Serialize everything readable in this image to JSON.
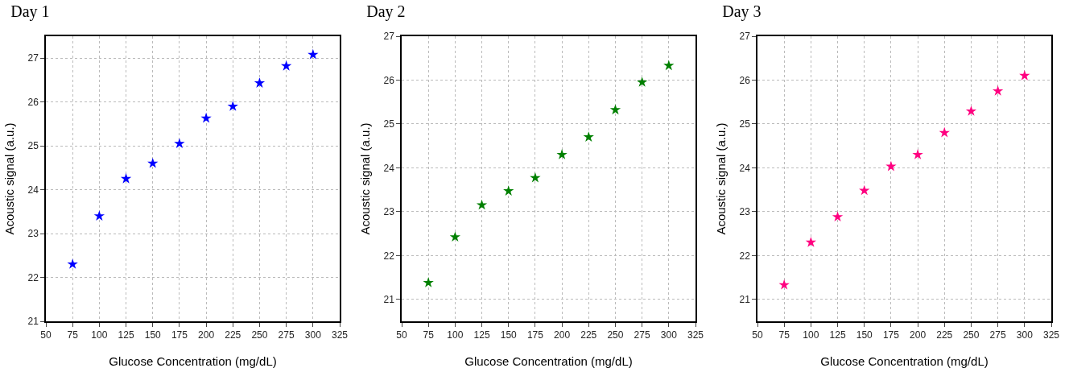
{
  "chart_data": [
    {
      "type": "scatter",
      "title": "Day 1",
      "xlabel": "Glucose Concentration (mg/dL)",
      "ylabel": "Acoustic signal (a.u.)",
      "x": [
        75,
        100,
        125,
        150,
        175,
        200,
        225,
        250,
        275,
        300
      ],
      "series": [
        {
          "color": "#0000ff",
          "values": [
            22.3,
            23.4,
            24.25,
            24.6,
            25.05,
            25.63,
            25.9,
            26.43,
            26.82,
            27.08
          ]
        }
      ],
      "xlim": [
        50,
        325
      ],
      "xticks": [
        50,
        75,
        100,
        125,
        150,
        175,
        200,
        225,
        250,
        275,
        300,
        325
      ],
      "ylim": [
        21,
        27.5
      ],
      "yticks": [
        21,
        22,
        23,
        24,
        25,
        26,
        27
      ],
      "grid": true,
      "marker": "star"
    },
    {
      "type": "scatter",
      "title": "Day 2",
      "xlabel": "Glucose Concentration (mg/dL)",
      "ylabel": "Acoustic signal (a.u.)",
      "x": [
        75,
        100,
        125,
        150,
        175,
        200,
        225,
        250,
        275,
        300
      ],
      "series": [
        {
          "color": "#008000",
          "values": [
            21.38,
            22.42,
            23.15,
            23.47,
            23.77,
            24.3,
            24.7,
            25.32,
            25.95,
            26.33
          ]
        }
      ],
      "xlim": [
        50,
        325
      ],
      "xticks": [
        50,
        75,
        100,
        125,
        150,
        175,
        200,
        225,
        250,
        275,
        300,
        325
      ],
      "ylim": [
        20.5,
        27
      ],
      "yticks": [
        21,
        22,
        23,
        24,
        25,
        26,
        27
      ],
      "grid": true,
      "marker": "star"
    },
    {
      "type": "scatter",
      "title": "Day 3",
      "xlabel": "Glucose Concentration (mg/dL)",
      "ylabel": "Acoustic signal (a.u.)",
      "x": [
        75,
        100,
        125,
        150,
        175,
        200,
        225,
        250,
        275,
        300
      ],
      "series": [
        {
          "color": "#ff0080",
          "values": [
            21.33,
            22.3,
            22.88,
            23.48,
            24.03,
            24.3,
            24.8,
            25.29,
            25.75,
            26.1
          ]
        }
      ],
      "xlim": [
        50,
        325
      ],
      "xticks": [
        50,
        75,
        100,
        125,
        150,
        175,
        200,
        225,
        250,
        275,
        300,
        325
      ],
      "ylim": [
        20.5,
        27
      ],
      "yticks": [
        21,
        22,
        23,
        24,
        25,
        26,
        27
      ],
      "grid": true,
      "marker": "star"
    }
  ]
}
